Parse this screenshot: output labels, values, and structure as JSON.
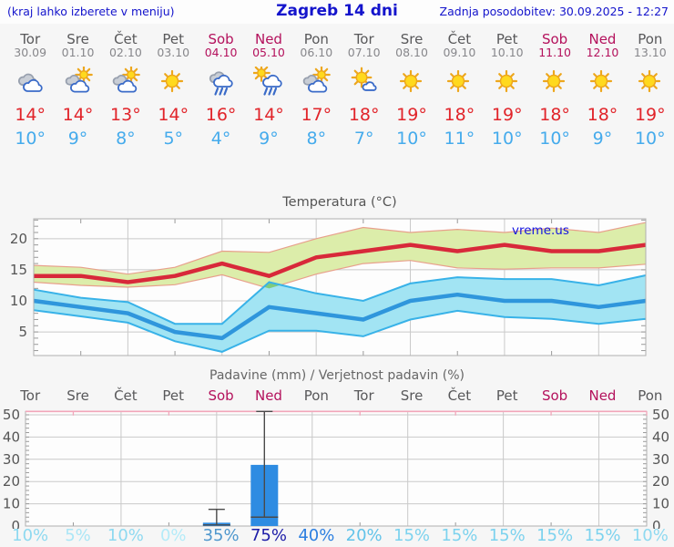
{
  "header": {
    "left_note": "(kraj lahko izberete v meniju)",
    "title": "Zagreb 14 dni",
    "updated": "Zadnja posodobitev: 30.09.2025 - 12:27"
  },
  "colors": {
    "weekday_text": "#58585a",
    "date_text": "#87878b",
    "weekend_text": "#b4115c",
    "hi_temp": "#e1242a",
    "lo_temp": "#45abec",
    "max_line": "#d8293a",
    "max_band": "#dcedaa",
    "max_band_edge": "#e8a08c",
    "min_line": "#2f96dc",
    "min_band": "#a2e4f3",
    "min_band_edge": "#38b2e8",
    "overlap_band": "#7ecb7e",
    "grid": "#c9c9c9",
    "axis": "#b0b0b0",
    "tick": "#999999",
    "axis_text": "#555555",
    "plot_bg": "#fdfdfd",
    "title_text": "#555555",
    "bar_fill": "#2e8ce2",
    "whisker": "#4a4a4a",
    "pink_line": "#f2a6ba",
    "link_blue": "#1414e0"
  },
  "forecast": {
    "days": [
      {
        "name": "Tor",
        "date": "30.09",
        "weekend": false,
        "icon": "cloudy",
        "hi": "14°",
        "lo": "10°"
      },
      {
        "name": "Sre",
        "date": "01.10",
        "weekend": false,
        "icon": "partly-cloudy",
        "hi": "14°",
        "lo": "9°"
      },
      {
        "name": "Čet",
        "date": "02.10",
        "weekend": false,
        "icon": "partly-cloudy",
        "hi": "13°",
        "lo": "8°"
      },
      {
        "name": "Pet",
        "date": "03.10",
        "weekend": false,
        "icon": "sunny",
        "hi": "14°",
        "lo": "5°"
      },
      {
        "name": "Sob",
        "date": "04.10",
        "weekend": true,
        "icon": "rain",
        "hi": "16°",
        "lo": "4°"
      },
      {
        "name": "Ned",
        "date": "05.10",
        "weekend": true,
        "icon": "sun-rain",
        "hi": "14°",
        "lo": "9°"
      },
      {
        "name": "Pon",
        "date": "06.10",
        "weekend": false,
        "icon": "partly-cloudy",
        "hi": "17°",
        "lo": "8°"
      },
      {
        "name": "Tor",
        "date": "07.10",
        "weekend": false,
        "icon": "mostly-sunny",
        "hi": "18°",
        "lo": "7°"
      },
      {
        "name": "Sre",
        "date": "08.10",
        "weekend": false,
        "icon": "sunny",
        "hi": "19°",
        "lo": "10°"
      },
      {
        "name": "Čet",
        "date": "09.10",
        "weekend": false,
        "icon": "sunny",
        "hi": "18°",
        "lo": "11°"
      },
      {
        "name": "Pet",
        "date": "10.10",
        "weekend": false,
        "icon": "sunny",
        "hi": "19°",
        "lo": "10°"
      },
      {
        "name": "Sob",
        "date": "11.10",
        "weekend": true,
        "icon": "sunny",
        "hi": "18°",
        "lo": "10°"
      },
      {
        "name": "Ned",
        "date": "12.10",
        "weekend": true,
        "icon": "sunny",
        "hi": "18°",
        "lo": "9°"
      },
      {
        "name": "Pon",
        "date": "13.10",
        "weekend": false,
        "icon": "sunny",
        "hi": "19°",
        "lo": "10°"
      }
    ]
  },
  "chart_data": [
    {
      "type": "line",
      "title": "Temperatura (°C)",
      "watermark": "vreme.us",
      "categories": [
        "30.09",
        "01.10",
        "02.10",
        "03.10",
        "04.10",
        "05.10",
        "06.10",
        "07.10",
        "08.10",
        "09.10",
        "10.10",
        "11.10",
        "12.10",
        "13.10"
      ],
      "ylim": [
        1.2,
        23.2
      ],
      "yticks": [
        5,
        10,
        15,
        20
      ],
      "grid_days": [
        2,
        4,
        6,
        8,
        10,
        12
      ],
      "tick_days": [
        1,
        3,
        5,
        7,
        9,
        11,
        13
      ],
      "series": [
        {
          "name": "max",
          "values": [
            14,
            14,
            13,
            14,
            16,
            14,
            17,
            18,
            19,
            18,
            19,
            18,
            18,
            19
          ]
        },
        {
          "name": "max_hi",
          "values": [
            15.7,
            15.4,
            14.3,
            15.4,
            18,
            17.8,
            20,
            21.8,
            21,
            21.5,
            21,
            21.7,
            21,
            22.6
          ]
        },
        {
          "name": "max_lo",
          "values": [
            13,
            12.5,
            12.2,
            12.6,
            14.2,
            12,
            14.3,
            16,
            16.5,
            15.3,
            15.1,
            15.3,
            15.3,
            15.9
          ]
        },
        {
          "name": "min",
          "values": [
            10,
            9,
            8,
            5,
            4,
            9,
            8,
            7,
            10,
            11,
            10,
            10,
            9,
            10
          ]
        },
        {
          "name": "min_hi",
          "values": [
            11.8,
            10.5,
            9.8,
            6.3,
            6.3,
            13,
            11.2,
            10,
            12.8,
            13.8,
            13.5,
            13.5,
            12.5,
            14.1
          ]
        },
        {
          "name": "min_lo",
          "values": [
            8.5,
            7.5,
            6.5,
            3.5,
            1.8,
            5.2,
            5.2,
            4.3,
            7,
            8.4,
            7.4,
            7.1,
            6.3,
            7.1
          ]
        }
      ]
    },
    {
      "type": "bar",
      "title": "Padavine (mm) / Verjetnost padavin (%)",
      "day_labels": [
        {
          "label": "Tor",
          "weekend": false
        },
        {
          "label": "Sre",
          "weekend": false
        },
        {
          "label": "Čet",
          "weekend": false
        },
        {
          "label": "Pet",
          "weekend": false
        },
        {
          "label": "Sob",
          "weekend": true
        },
        {
          "label": "Ned",
          "weekend": true
        },
        {
          "label": "Pon",
          "weekend": false
        },
        {
          "label": "Tor",
          "weekend": false
        },
        {
          "label": "Sre",
          "weekend": false
        },
        {
          "label": "Čet",
          "weekend": false
        },
        {
          "label": "Pet",
          "weekend": false
        },
        {
          "label": "Sob",
          "weekend": true
        },
        {
          "label": "Ned",
          "weekend": true
        },
        {
          "label": "Pon",
          "weekend": false
        }
      ],
      "ylim": [
        0,
        52
      ],
      "yticks": [
        0,
        10,
        20,
        30,
        40,
        50
      ],
      "grid_days": [
        2,
        4,
        6,
        8,
        10,
        12
      ],
      "tick_days": [
        1,
        3,
        5,
        7,
        9,
        11,
        13
      ],
      "bars": [
        {
          "day": 4,
          "value": 1.5,
          "whisker_low": 0.5,
          "whisker_high": 7.5
        },
        {
          "day": 5,
          "value": 27.5,
          "whisker_low": 4,
          "whisker_high": 52
        }
      ],
      "probabilities": [
        {
          "label": "10%",
          "color": "#8ed9f0"
        },
        {
          "label": "5%",
          "color": "#abe6f6"
        },
        {
          "label": "10%",
          "color": "#8ed9f0"
        },
        {
          "label": "0%",
          "color": "#b4ebf8"
        },
        {
          "label": "35%",
          "color": "#4f97cd"
        },
        {
          "label": "75%",
          "color": "#1d1da8"
        },
        {
          "label": "40%",
          "color": "#2d7fe0"
        },
        {
          "label": "20%",
          "color": "#62c3e9"
        },
        {
          "label": "15%",
          "color": "#7cd2ee"
        },
        {
          "label": "15%",
          "color": "#7cd2ee"
        },
        {
          "label": "15%",
          "color": "#7cd2ee"
        },
        {
          "label": "15%",
          "color": "#7cd2ee"
        },
        {
          "label": "15%",
          "color": "#7cd2ee"
        },
        {
          "label": "10%",
          "color": "#8ed9f0"
        }
      ]
    }
  ]
}
